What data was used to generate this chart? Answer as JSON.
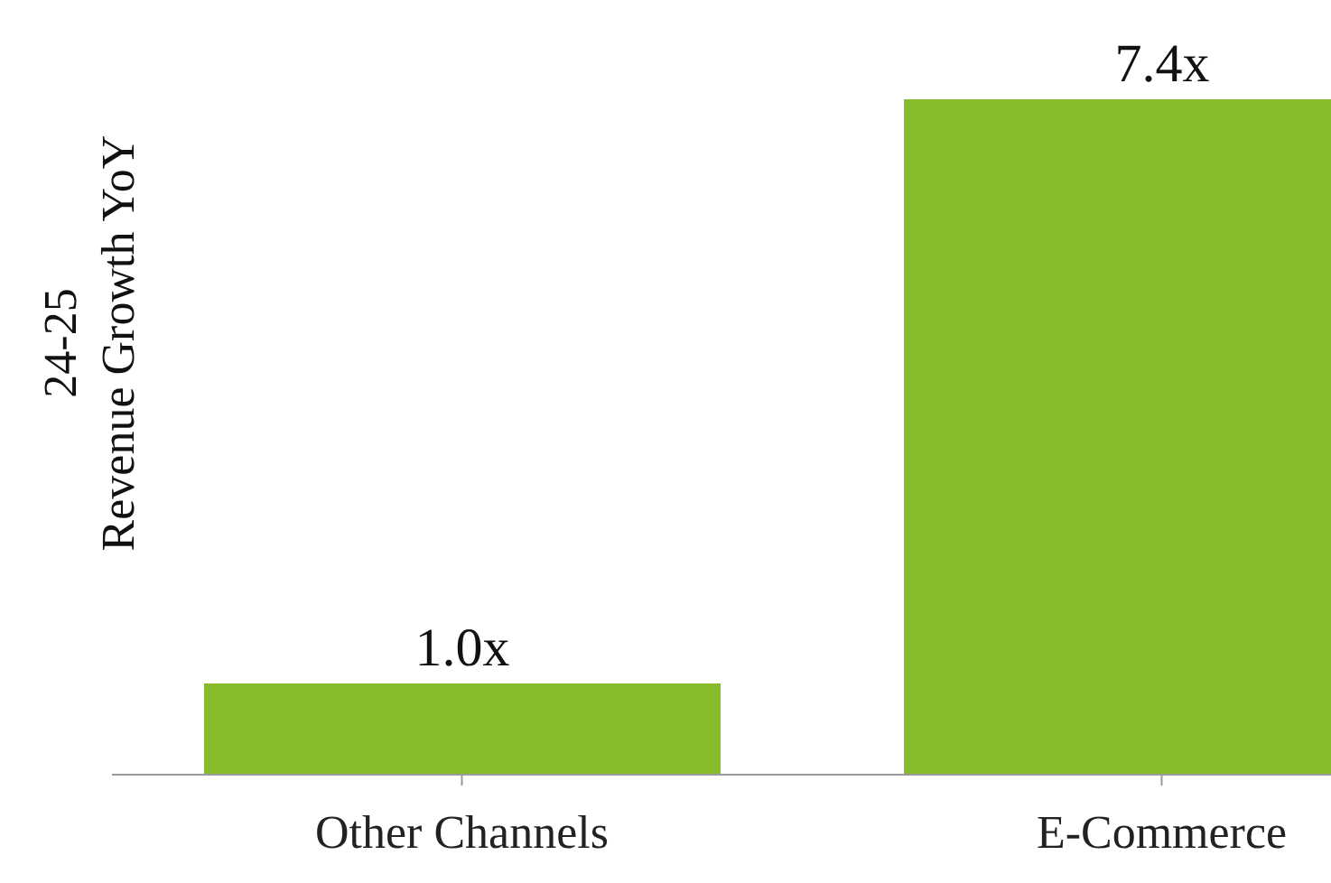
{
  "chart_data": {
    "type": "bar",
    "ylabel": "24-25\nRevenue Growth YoY",
    "categories": [
      "Other Channels",
      "E-Commerce"
    ],
    "values": [
      1.0,
      7.4
    ],
    "color": "#86bb29",
    "value_labels": [
      "1.0x",
      "7.4x"
    ]
  }
}
